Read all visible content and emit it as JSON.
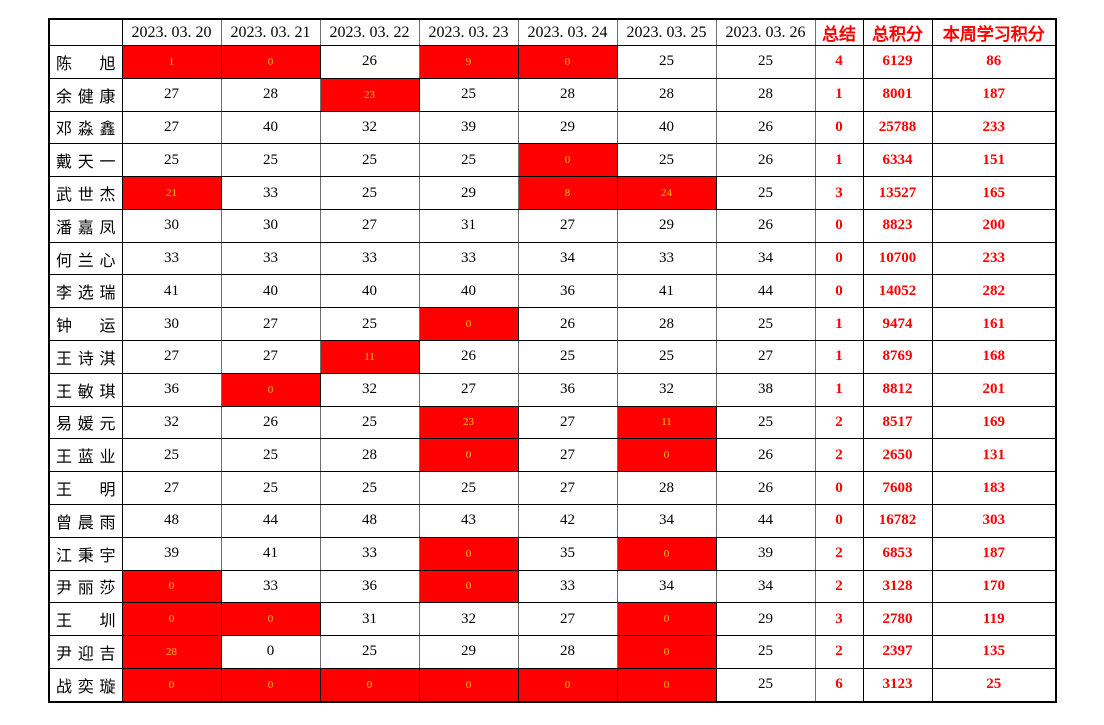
{
  "colors": {
    "flag_fill": "#FF0000",
    "flag_text": "#FFC000",
    "summary_text": "#FF0000",
    "normal_text": "#000000",
    "border": "#000000",
    "background": "#FFFFFF"
  },
  "chart_data": {
    "type": "table",
    "title": "",
    "corner_label": "",
    "columns": [
      "",
      "2023. 03. 20",
      "2023. 03. 21",
      "2023. 03. 22",
      "2023. 03. 23",
      "2023. 03. 24",
      "2023. 03. 25",
      "2023. 03. 26",
      "总结",
      "总积分",
      "本周学习积分"
    ],
    "date_columns": [
      "2023. 03. 20",
      "2023. 03. 21",
      "2023. 03. 22",
      "2023. 03. 23",
      "2023. 03. 24",
      "2023. 03. 25",
      "2023. 03. 26"
    ],
    "summary_columns": [
      "总结",
      "总积分",
      "本周学习积分"
    ],
    "flag_meaning": "red cell = flagged low/zero score day, gold text",
    "rows": [
      {
        "name": "陈旭",
        "days": [
          1,
          0,
          26,
          9,
          0,
          25,
          25
        ],
        "red": [
          1,
          1,
          0,
          1,
          1,
          0,
          0
        ],
        "summary": 4,
        "total": 6129,
        "week": 86
      },
      {
        "name": "余健康",
        "days": [
          27,
          28,
          23,
          25,
          28,
          28,
          28
        ],
        "red": [
          0,
          0,
          1,
          0,
          0,
          0,
          0
        ],
        "summary": 1,
        "total": 8001,
        "week": 187
      },
      {
        "name": "邓淼鑫",
        "days": [
          27,
          40,
          32,
          39,
          29,
          40,
          26
        ],
        "red": [
          0,
          0,
          0,
          0,
          0,
          0,
          0
        ],
        "summary": 0,
        "total": 25788,
        "week": 233
      },
      {
        "name": "戴天一",
        "days": [
          25,
          25,
          25,
          25,
          0,
          25,
          26
        ],
        "red": [
          0,
          0,
          0,
          0,
          1,
          0,
          0
        ],
        "summary": 1,
        "total": 6334,
        "week": 151
      },
      {
        "name": "武世杰",
        "days": [
          21,
          33,
          25,
          29,
          8,
          24,
          25
        ],
        "red": [
          1,
          0,
          0,
          0,
          1,
          1,
          0
        ],
        "summary": 3,
        "total": 13527,
        "week": 165
      },
      {
        "name": "潘嘉凤",
        "days": [
          30,
          30,
          27,
          31,
          27,
          29,
          26
        ],
        "red": [
          0,
          0,
          0,
          0,
          0,
          0,
          0
        ],
        "summary": 0,
        "total": 8823,
        "week": 200
      },
      {
        "name": "何兰心",
        "days": [
          33,
          33,
          33,
          33,
          34,
          33,
          34
        ],
        "red": [
          0,
          0,
          0,
          0,
          0,
          0,
          0
        ],
        "summary": 0,
        "total": 10700,
        "week": 233
      },
      {
        "name": "李选瑞",
        "days": [
          41,
          40,
          40,
          40,
          36,
          41,
          44
        ],
        "red": [
          0,
          0,
          0,
          0,
          0,
          0,
          0
        ],
        "summary": 0,
        "total": 14052,
        "week": 282
      },
      {
        "name": "钟运",
        "days": [
          30,
          27,
          25,
          0,
          26,
          28,
          25
        ],
        "red": [
          0,
          0,
          0,
          1,
          0,
          0,
          0
        ],
        "summary": 1,
        "total": 9474,
        "week": 161
      },
      {
        "name": "王诗淇",
        "days": [
          27,
          27,
          11,
          26,
          25,
          25,
          27
        ],
        "red": [
          0,
          0,
          1,
          0,
          0,
          0,
          0
        ],
        "summary": 1,
        "total": 8769,
        "week": 168
      },
      {
        "name": "王敏琪",
        "days": [
          36,
          0,
          32,
          27,
          36,
          32,
          38
        ],
        "red": [
          0,
          1,
          0,
          0,
          0,
          0,
          0
        ],
        "summary": 1,
        "total": 8812,
        "week": 201
      },
      {
        "name": "易媛元",
        "days": [
          32,
          26,
          25,
          23,
          27,
          11,
          25
        ],
        "red": [
          0,
          0,
          0,
          1,
          0,
          1,
          0
        ],
        "summary": 2,
        "total": 8517,
        "week": 169
      },
      {
        "name": "王蓝业",
        "days": [
          25,
          25,
          28,
          0,
          27,
          0,
          26
        ],
        "red": [
          0,
          0,
          0,
          1,
          0,
          1,
          0
        ],
        "summary": 2,
        "total": 2650,
        "week": 131
      },
      {
        "name": "王明",
        "days": [
          27,
          25,
          25,
          25,
          27,
          28,
          26
        ],
        "red": [
          0,
          0,
          0,
          0,
          0,
          0,
          0
        ],
        "summary": 0,
        "total": 7608,
        "week": 183
      },
      {
        "name": "曾晨雨",
        "days": [
          48,
          44,
          48,
          43,
          42,
          34,
          44
        ],
        "red": [
          0,
          0,
          0,
          0,
          0,
          0,
          0
        ],
        "summary": 0,
        "total": 16782,
        "week": 303
      },
      {
        "name": "江秉宇",
        "days": [
          39,
          41,
          33,
          0,
          35,
          0,
          39
        ],
        "red": [
          0,
          0,
          0,
          1,
          0,
          1,
          0
        ],
        "summary": 2,
        "total": 6853,
        "week": 187
      },
      {
        "name": "尹丽莎",
        "days": [
          0,
          33,
          36,
          0,
          33,
          34,
          34
        ],
        "red": [
          1,
          0,
          0,
          1,
          0,
          0,
          0
        ],
        "summary": 2,
        "total": 3128,
        "week": 170
      },
      {
        "name": "王圳",
        "days": [
          0,
          0,
          31,
          32,
          27,
          0,
          29
        ],
        "red": [
          1,
          1,
          0,
          0,
          0,
          1,
          0
        ],
        "summary": 3,
        "total": 2780,
        "week": 119
      },
      {
        "name": "尹迎吉",
        "days": [
          28,
          0,
          25,
          29,
          28,
          0,
          25
        ],
        "red": [
          1,
          0,
          0,
          0,
          0,
          1,
          0
        ],
        "summary": 2,
        "total": 2397,
        "week": 135
      },
      {
        "name": "战奕璇",
        "days": [
          0,
          0,
          0,
          0,
          0,
          0,
          25
        ],
        "red": [
          1,
          1,
          1,
          1,
          1,
          1,
          0
        ],
        "summary": 6,
        "total": 3123,
        "week": 25
      }
    ]
  }
}
